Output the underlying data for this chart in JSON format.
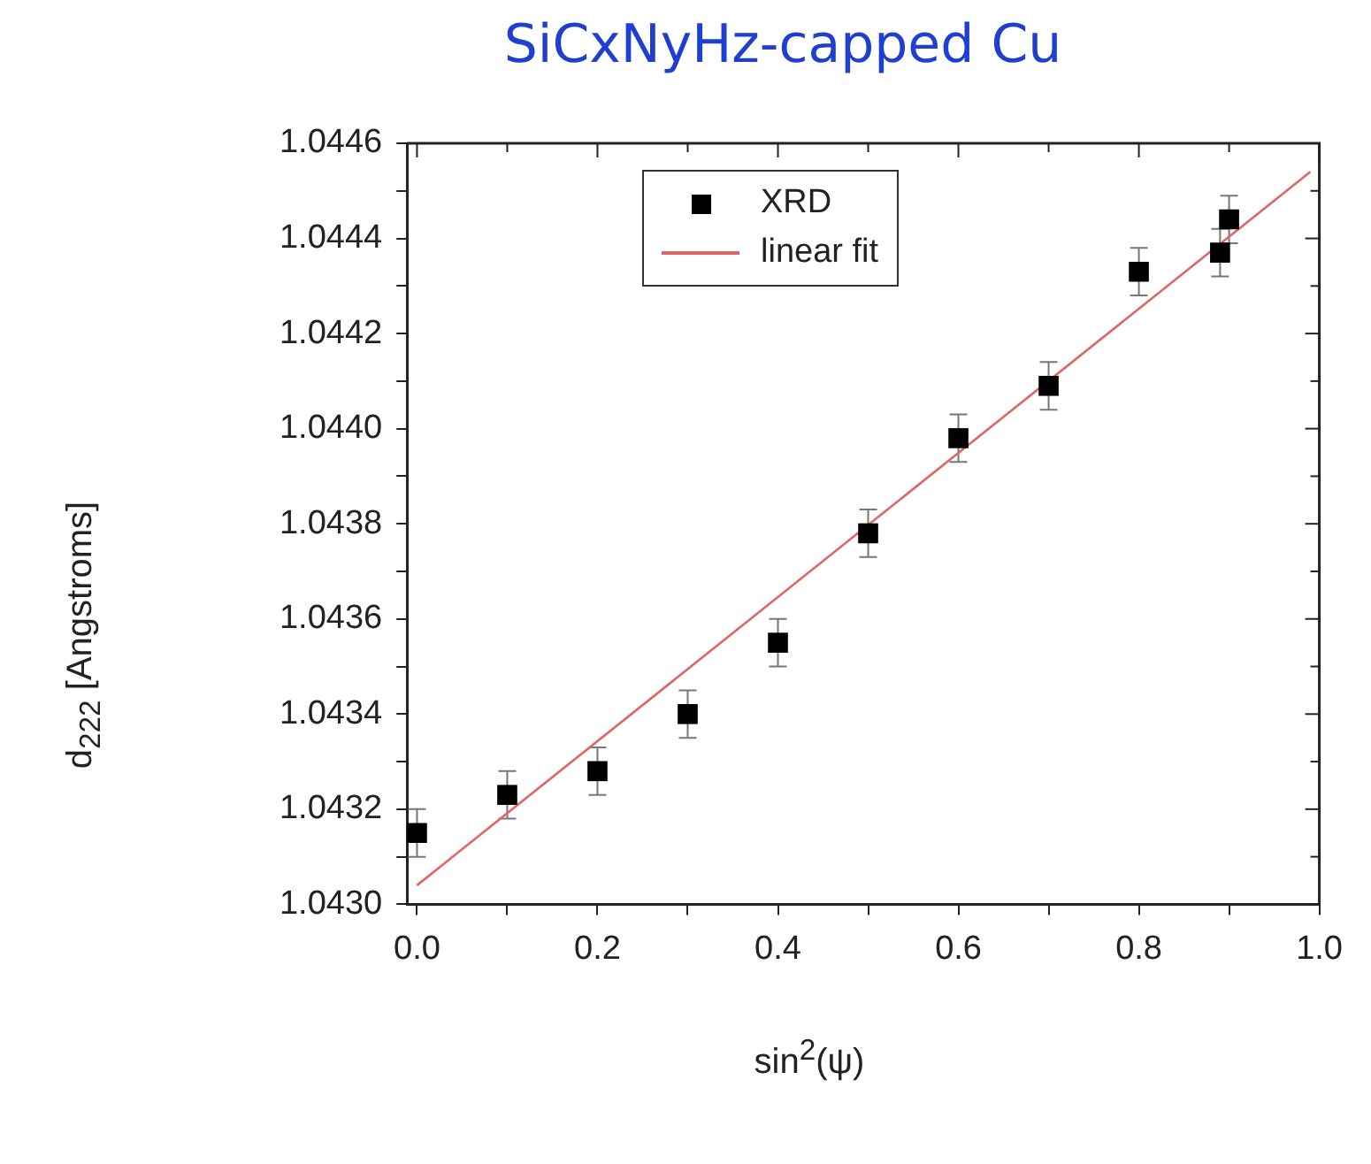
{
  "chart_data": {
    "type": "scatter",
    "title": "SiCxNyHz-capped Cu",
    "xlabel": "sin$^{2}$(ψ)",
    "ylabel": "d$_{222}$ [Angstroms]",
    "series": [
      {
        "name": "XRD",
        "type": "scatter",
        "color": "#000000",
        "marker": "square",
        "x": [
          0,
          0.1,
          0.2,
          0.3,
          0.4,
          0.5,
          0.6,
          0.7,
          0.8,
          0.89,
          0.9
        ],
        "values": [
          1.04315,
          1.04323,
          1.04328,
          1.0434,
          1.04355,
          1.04378,
          1.04398,
          1.04409,
          1.04433,
          1.04437,
          1.04444
        ],
        "errors": [
          5e-05,
          5e-05,
          5e-05,
          5e-05,
          5e-05,
          5e-05,
          5e-05,
          5e-05,
          5e-05,
          5e-05,
          5e-05
        ]
      },
      {
        "name": "linear fit",
        "type": "line",
        "color": "#e06666",
        "marker": "none",
        "line_style": "solid",
        "x": [
          0,
          0.99
        ],
        "values": [
          1.04304,
          1.04454
        ]
      }
    ],
    "xlim": [
      -0.011,
      1.0
    ],
    "ylim": [
      1.043,
      1.0446
    ],
    "xticks": [
      {
        "value": 0,
        "label": "0.0"
      },
      {
        "value": 0.1,
        "label": null
      },
      {
        "value": 0.2,
        "label": "0.2"
      },
      {
        "value": 0.3,
        "label": null
      },
      {
        "value": 0.4,
        "label": "0.4"
      },
      {
        "value": 0.5,
        "label": null
      },
      {
        "value": 0.6,
        "label": "0.6"
      },
      {
        "value": 0.7,
        "label": null
      },
      {
        "value": 0.8,
        "label": "0.8"
      },
      {
        "value": 0.9,
        "label": null
      },
      {
        "value": 1.0,
        "label": "1.0"
      }
    ],
    "yticks": [
      {
        "value": 1.043,
        "label": "1.0430"
      },
      {
        "value": 1.0431,
        "label": null
      },
      1.0432,
      {
        "value": 1.0433,
        "label": null
      },
      1.0434,
      {
        "value": 1.0435,
        "label": null
      },
      1.0436,
      {
        "value": 1.0437,
        "label": null
      },
      1.0438,
      {
        "value": 1.0439,
        "label": null
      },
      {
        "value": 1.044,
        "label": "1.0440"
      },
      {
        "value": 1.0441,
        "label": null
      },
      1.0442,
      {
        "value": 1.0443,
        "label": null
      },
      1.0444,
      {
        "value": 1.0445,
        "label": null
      },
      1.0446
    ],
    "grid": false,
    "legend": "top"
  }
}
